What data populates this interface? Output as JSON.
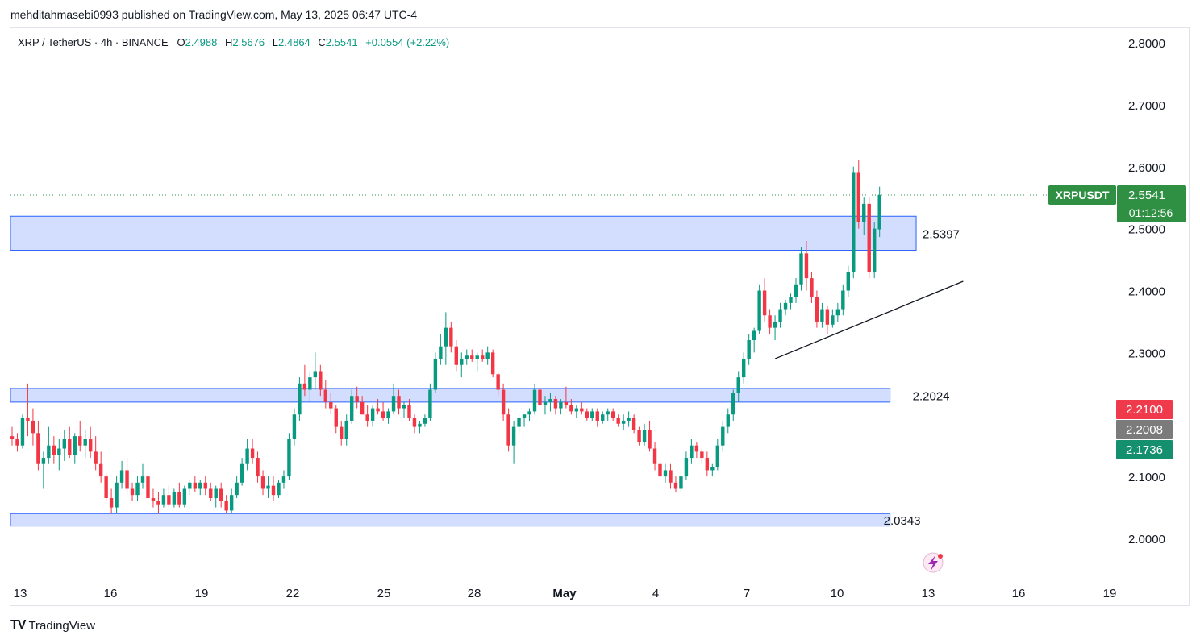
{
  "header": {
    "published_line": "mehditahmasebi0993 published on TradingView.com, May 13, 2025 06:47 UTC-4"
  },
  "symbol_bar": {
    "name": "XRP / TetherUS · 4h · BINANCE",
    "open_label": "O",
    "open": "2.4988",
    "high_label": "H",
    "high": "2.5676",
    "low_label": "L",
    "low": "2.4864",
    "close_label": "C",
    "close": "2.5541",
    "change": "+0.0554 (+2.22%)"
  },
  "footer": {
    "brand": "TradingView",
    "logo": "TV"
  },
  "colors": {
    "up": "#089981",
    "down": "#f23645",
    "zone_fill": "#d3defe",
    "zone_border": "#2962ff",
    "price_label": "#2f8f43",
    "bid_label": "#ef3a4c",
    "mid_label": "#7b7b7b",
    "ask_label": "#15906f"
  },
  "chart_data": {
    "type": "candlestick",
    "symbol": "XRPUSDT",
    "timeframe": "4h",
    "x_ticks": [
      "13",
      "16",
      "19",
      "22",
      "25",
      "28",
      "May",
      "4",
      "7",
      "10",
      "13",
      "16",
      "19"
    ],
    "y_ticks": [
      "2.8000",
      "2.7000",
      "2.6000",
      "2.5000",
      "2.4000",
      "2.3000",
      "2.1000",
      "2.0000"
    ],
    "ylim": [
      1.97,
      2.82
    ],
    "last_price": {
      "label": "XRPUSDT",
      "value": "2.5541",
      "countdown": "01:12:56"
    },
    "price_tags": [
      {
        "value": "2.2100",
        "kind": "bid"
      },
      {
        "value": "2.2008",
        "kind": "mid"
      },
      {
        "value": "2.1736",
        "kind": "ask"
      }
    ],
    "zones": [
      {
        "low": 2.465,
        "high": 2.52,
        "label": "2.5397",
        "until_bar": 173
      },
      {
        "low": 2.22,
        "high": 2.242,
        "label": "2.2024",
        "until_bar": 168
      },
      {
        "low": 2.02,
        "high": 2.04,
        "label": "2.0343",
        "until_bar": 168
      }
    ],
    "trendline": {
      "from": {
        "bar": 146,
        "price": 2.29
      },
      "to": {
        "bar": 182,
        "price": 2.415
      }
    },
    "candles": [
      [
        2.165,
        2.18,
        2.15,
        2.16
      ],
      [
        2.16,
        2.17,
        2.14,
        2.15
      ],
      [
        2.15,
        2.2,
        2.145,
        2.195
      ],
      [
        2.195,
        2.25,
        2.165,
        2.19
      ],
      [
        2.19,
        2.21,
        2.15,
        2.17
      ],
      [
        2.17,
        2.19,
        2.11,
        2.12
      ],
      [
        2.12,
        2.14,
        2.08,
        2.13
      ],
      [
        2.13,
        2.18,
        2.12,
        2.15
      ],
      [
        2.15,
        2.165,
        2.12,
        2.135
      ],
      [
        2.135,
        2.16,
        2.11,
        2.145
      ],
      [
        2.145,
        2.175,
        2.125,
        2.16
      ],
      [
        2.16,
        2.18,
        2.13,
        2.135
      ],
      [
        2.135,
        2.17,
        2.12,
        2.165
      ],
      [
        2.165,
        2.19,
        2.14,
        2.15
      ],
      [
        2.15,
        2.175,
        2.13,
        2.16
      ],
      [
        2.16,
        2.18,
        2.13,
        2.14
      ],
      [
        2.14,
        2.165,
        2.11,
        2.12
      ],
      [
        2.12,
        2.14,
        2.09,
        2.1
      ],
      [
        2.1,
        2.105,
        2.06,
        2.065
      ],
      [
        2.065,
        2.08,
        2.04,
        2.05
      ],
      [
        2.05,
        2.1,
        2.04,
        2.09
      ],
      [
        2.09,
        2.125,
        2.08,
        2.11
      ],
      [
        2.11,
        2.13,
        2.07,
        2.08
      ],
      [
        2.08,
        2.09,
        2.06,
        2.07
      ],
      [
        2.07,
        2.1,
        2.06,
        2.09
      ],
      [
        2.09,
        2.12,
        2.08,
        2.1
      ],
      [
        2.1,
        2.115,
        2.06,
        2.065
      ],
      [
        2.065,
        2.08,
        2.05,
        2.06
      ],
      [
        2.06,
        2.075,
        2.04,
        2.055
      ],
      [
        2.055,
        2.08,
        2.05,
        2.07
      ],
      [
        2.07,
        2.085,
        2.05,
        2.055
      ],
      [
        2.055,
        2.08,
        2.05,
        2.075
      ],
      [
        2.075,
        2.09,
        2.05,
        2.055
      ],
      [
        2.055,
        2.085,
        2.05,
        2.08
      ],
      [
        2.08,
        2.095,
        2.07,
        2.09
      ],
      [
        2.09,
        2.1,
        2.075,
        2.08
      ],
      [
        2.08,
        2.095,
        2.07,
        2.09
      ],
      [
        2.09,
        2.1,
        2.07,
        2.08
      ],
      [
        2.08,
        2.09,
        2.06,
        2.065
      ],
      [
        2.065,
        2.085,
        2.05,
        2.08
      ],
      [
        2.08,
        2.09,
        2.05,
        2.06
      ],
      [
        2.06,
        2.07,
        2.04,
        2.045
      ],
      [
        2.045,
        2.08,
        2.04,
        2.07
      ],
      [
        2.07,
        2.1,
        2.065,
        2.09
      ],
      [
        2.09,
        2.13,
        2.085,
        2.12
      ],
      [
        2.12,
        2.16,
        2.11,
        2.145
      ],
      [
        2.145,
        2.16,
        2.12,
        2.13
      ],
      [
        2.13,
        2.14,
        2.09,
        2.1
      ],
      [
        2.1,
        2.11,
        2.07,
        2.08
      ],
      [
        2.08,
        2.1,
        2.065,
        2.085
      ],
      [
        2.085,
        2.1,
        2.06,
        2.07
      ],
      [
        2.07,
        2.095,
        2.065,
        2.09
      ],
      [
        2.09,
        2.11,
        2.08,
        2.1
      ],
      [
        2.1,
        2.17,
        2.095,
        2.16
      ],
      [
        2.16,
        2.21,
        2.15,
        2.2
      ],
      [
        2.2,
        2.26,
        2.19,
        2.25
      ],
      [
        2.25,
        2.28,
        2.23,
        2.24
      ],
      [
        2.24,
        2.27,
        2.22,
        2.26
      ],
      [
        2.26,
        2.3,
        2.24,
        2.27
      ],
      [
        2.27,
        2.28,
        2.23,
        2.24
      ],
      [
        2.24,
        2.255,
        2.21,
        2.22
      ],
      [
        2.22,
        2.235,
        2.2,
        2.21
      ],
      [
        2.21,
        2.215,
        2.17,
        2.18
      ],
      [
        2.18,
        2.19,
        2.15,
        2.16
      ],
      [
        2.16,
        2.2,
        2.15,
        2.19
      ],
      [
        2.19,
        2.24,
        2.185,
        2.23
      ],
      [
        2.23,
        2.245,
        2.21,
        2.22
      ],
      [
        2.22,
        2.23,
        2.2,
        2.2
      ],
      [
        2.2,
        2.215,
        2.18,
        2.19
      ],
      [
        2.19,
        2.215,
        2.18,
        2.21
      ],
      [
        2.21,
        2.225,
        2.2,
        2.205
      ],
      [
        2.205,
        2.22,
        2.19,
        2.195
      ],
      [
        2.195,
        2.21,
        2.185,
        2.205
      ],
      [
        2.205,
        2.25,
        2.2,
        2.23
      ],
      [
        2.23,
        2.24,
        2.2,
        2.21
      ],
      [
        2.21,
        2.22,
        2.195,
        2.215
      ],
      [
        2.215,
        2.225,
        2.19,
        2.195
      ],
      [
        2.195,
        2.2,
        2.17,
        2.18
      ],
      [
        2.18,
        2.19,
        2.17,
        2.185
      ],
      [
        2.185,
        2.2,
        2.18,
        2.195
      ],
      [
        2.195,
        2.25,
        2.19,
        2.24
      ],
      [
        2.24,
        2.3,
        2.235,
        2.29
      ],
      [
        2.29,
        2.33,
        2.28,
        2.31
      ],
      [
        2.31,
        2.365,
        2.28,
        2.34
      ],
      [
        2.34,
        2.35,
        2.3,
        2.31
      ],
      [
        2.31,
        2.32,
        2.27,
        2.28
      ],
      [
        2.28,
        2.3,
        2.26,
        2.29
      ],
      [
        2.29,
        2.305,
        2.28,
        2.295
      ],
      [
        2.295,
        2.305,
        2.285,
        2.29
      ],
      [
        2.29,
        2.3,
        2.27,
        2.295
      ],
      [
        2.295,
        2.305,
        2.285,
        2.29
      ],
      [
        2.29,
        2.31,
        2.28,
        2.3
      ],
      [
        2.3,
        2.305,
        2.26,
        2.265
      ],
      [
        2.265,
        2.27,
        2.23,
        2.24
      ],
      [
        2.24,
        2.25,
        2.19,
        2.2
      ],
      [
        2.2,
        2.21,
        2.14,
        2.15
      ],
      [
        2.15,
        2.19,
        2.12,
        2.18
      ],
      [
        2.18,
        2.2,
        2.17,
        2.195
      ],
      [
        2.195,
        2.2,
        2.18,
        2.2
      ],
      [
        2.2,
        2.21,
        2.19,
        2.205
      ],
      [
        2.205,
        2.25,
        2.2,
        2.24
      ],
      [
        2.24,
        2.245,
        2.21,
        2.215
      ],
      [
        2.215,
        2.23,
        2.2,
        2.22
      ],
      [
        2.22,
        2.235,
        2.205,
        2.225
      ],
      [
        2.225,
        2.23,
        2.2,
        2.21
      ],
      [
        2.21,
        2.225,
        2.2,
        2.22
      ],
      [
        2.22,
        2.245,
        2.21,
        2.215
      ],
      [
        2.215,
        2.225,
        2.2,
        2.205
      ],
      [
        2.205,
        2.215,
        2.195,
        2.21
      ],
      [
        2.21,
        2.22,
        2.2,
        2.205
      ],
      [
        2.205,
        2.21,
        2.19,
        2.195
      ],
      [
        2.195,
        2.21,
        2.19,
        2.205
      ],
      [
        2.205,
        2.21,
        2.18,
        2.19
      ],
      [
        2.19,
        2.205,
        2.185,
        2.2
      ],
      [
        2.2,
        2.21,
        2.19,
        2.205
      ],
      [
        2.205,
        2.21,
        2.19,
        2.195
      ],
      [
        2.195,
        2.2,
        2.18,
        2.185
      ],
      [
        2.185,
        2.2,
        2.175,
        2.19
      ],
      [
        2.19,
        2.205,
        2.18,
        2.195
      ],
      [
        2.195,
        2.2,
        2.17,
        2.175
      ],
      [
        2.175,
        2.18,
        2.15,
        2.155
      ],
      [
        2.155,
        2.185,
        2.15,
        2.175
      ],
      [
        2.175,
        2.19,
        2.14,
        2.145
      ],
      [
        2.145,
        2.155,
        2.11,
        2.12
      ],
      [
        2.12,
        2.13,
        2.09,
        2.1
      ],
      [
        2.1,
        2.12,
        2.09,
        2.11
      ],
      [
        2.11,
        2.12,
        2.08,
        2.09
      ],
      [
        2.09,
        2.1,
        2.075,
        2.08
      ],
      [
        2.08,
        2.11,
        2.075,
        2.1
      ],
      [
        2.1,
        2.14,
        2.095,
        2.13
      ],
      [
        2.13,
        2.16,
        2.12,
        2.15
      ],
      [
        2.15,
        2.155,
        2.13,
        2.14
      ],
      [
        2.14,
        2.145,
        2.12,
        2.13
      ],
      [
        2.13,
        2.14,
        2.1,
        2.11
      ],
      [
        2.11,
        2.12,
        2.1,
        2.115
      ],
      [
        2.115,
        2.16,
        2.11,
        2.15
      ],
      [
        2.15,
        2.19,
        2.14,
        2.18
      ],
      [
        2.18,
        2.21,
        2.17,
        2.2
      ],
      [
        2.2,
        2.24,
        2.19,
        2.235
      ],
      [
        2.235,
        2.27,
        2.22,
        2.26
      ],
      [
        2.26,
        2.3,
        2.25,
        2.29
      ],
      [
        2.29,
        2.33,
        2.28,
        2.32
      ],
      [
        2.32,
        2.34,
        2.3,
        2.335
      ],
      [
        2.335,
        2.41,
        2.33,
        2.4
      ],
      [
        2.4,
        2.42,
        2.35,
        2.36
      ],
      [
        2.36,
        2.37,
        2.33,
        2.34
      ],
      [
        2.34,
        2.36,
        2.32,
        2.35
      ],
      [
        2.35,
        2.38,
        2.34,
        2.37
      ],
      [
        2.37,
        2.385,
        2.36,
        2.38
      ],
      [
        2.38,
        2.395,
        2.37,
        2.39
      ],
      [
        2.39,
        2.42,
        2.38,
        2.41
      ],
      [
        2.41,
        2.47,
        2.4,
        2.46
      ],
      [
        2.46,
        2.48,
        2.4,
        2.42
      ],
      [
        2.42,
        2.43,
        2.38,
        2.39
      ],
      [
        2.39,
        2.4,
        2.34,
        2.35
      ],
      [
        2.35,
        2.38,
        2.34,
        2.37
      ],
      [
        2.37,
        2.375,
        2.33,
        2.345
      ],
      [
        2.345,
        2.37,
        2.34,
        2.36
      ],
      [
        2.36,
        2.38,
        2.35,
        2.37
      ],
      [
        2.37,
        2.41,
        2.36,
        2.4
      ],
      [
        2.4,
        2.44,
        2.39,
        2.43
      ],
      [
        2.43,
        2.6,
        2.42,
        2.59
      ],
      [
        2.59,
        2.61,
        2.5,
        2.51
      ],
      [
        2.51,
        2.55,
        2.49,
        2.54
      ],
      [
        2.54,
        2.55,
        2.42,
        2.43
      ],
      [
        2.43,
        2.51,
        2.42,
        2.5
      ],
      [
        2.4988,
        2.5676,
        2.4864,
        2.5541
      ]
    ]
  }
}
